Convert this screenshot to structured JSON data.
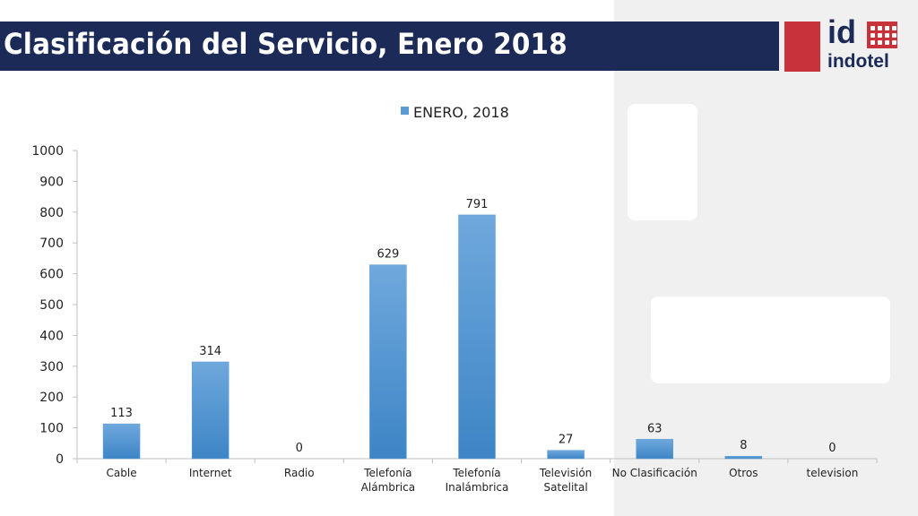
{
  "header": {
    "title": "Clasificación del Servicio, Enero 2018",
    "logo_id": "id",
    "logo_word": "indotel",
    "title_bar_color": "#1b2a57",
    "logo_red": "#c8323a"
  },
  "chart_data": {
    "type": "bar",
    "title": "",
    "xlabel": "",
    "ylabel": "",
    "ylim": [
      0,
      1000
    ],
    "yticks": [
      "0",
      "100",
      "200",
      "300",
      "400",
      "500",
      "600",
      "700",
      "800",
      "900",
      "1000"
    ],
    "categories": [
      [
        "Cable"
      ],
      [
        "Internet"
      ],
      [
        "Radio"
      ],
      [
        "Telefonía",
        "Alámbrica"
      ],
      [
        "Telefonía",
        "Inalámbrica"
      ],
      [
        "Televisión",
        "Satelital"
      ],
      [
        "No Clasificación"
      ],
      [
        "Otros"
      ],
      [
        "television"
      ]
    ],
    "series": [
      {
        "name": "ENERO, 2018",
        "color": "#5b9bd5",
        "values": [
          113,
          314,
          0,
          629,
          791,
          27,
          63,
          8,
          0
        ]
      }
    ],
    "legend": "top-center",
    "grid": false
  }
}
